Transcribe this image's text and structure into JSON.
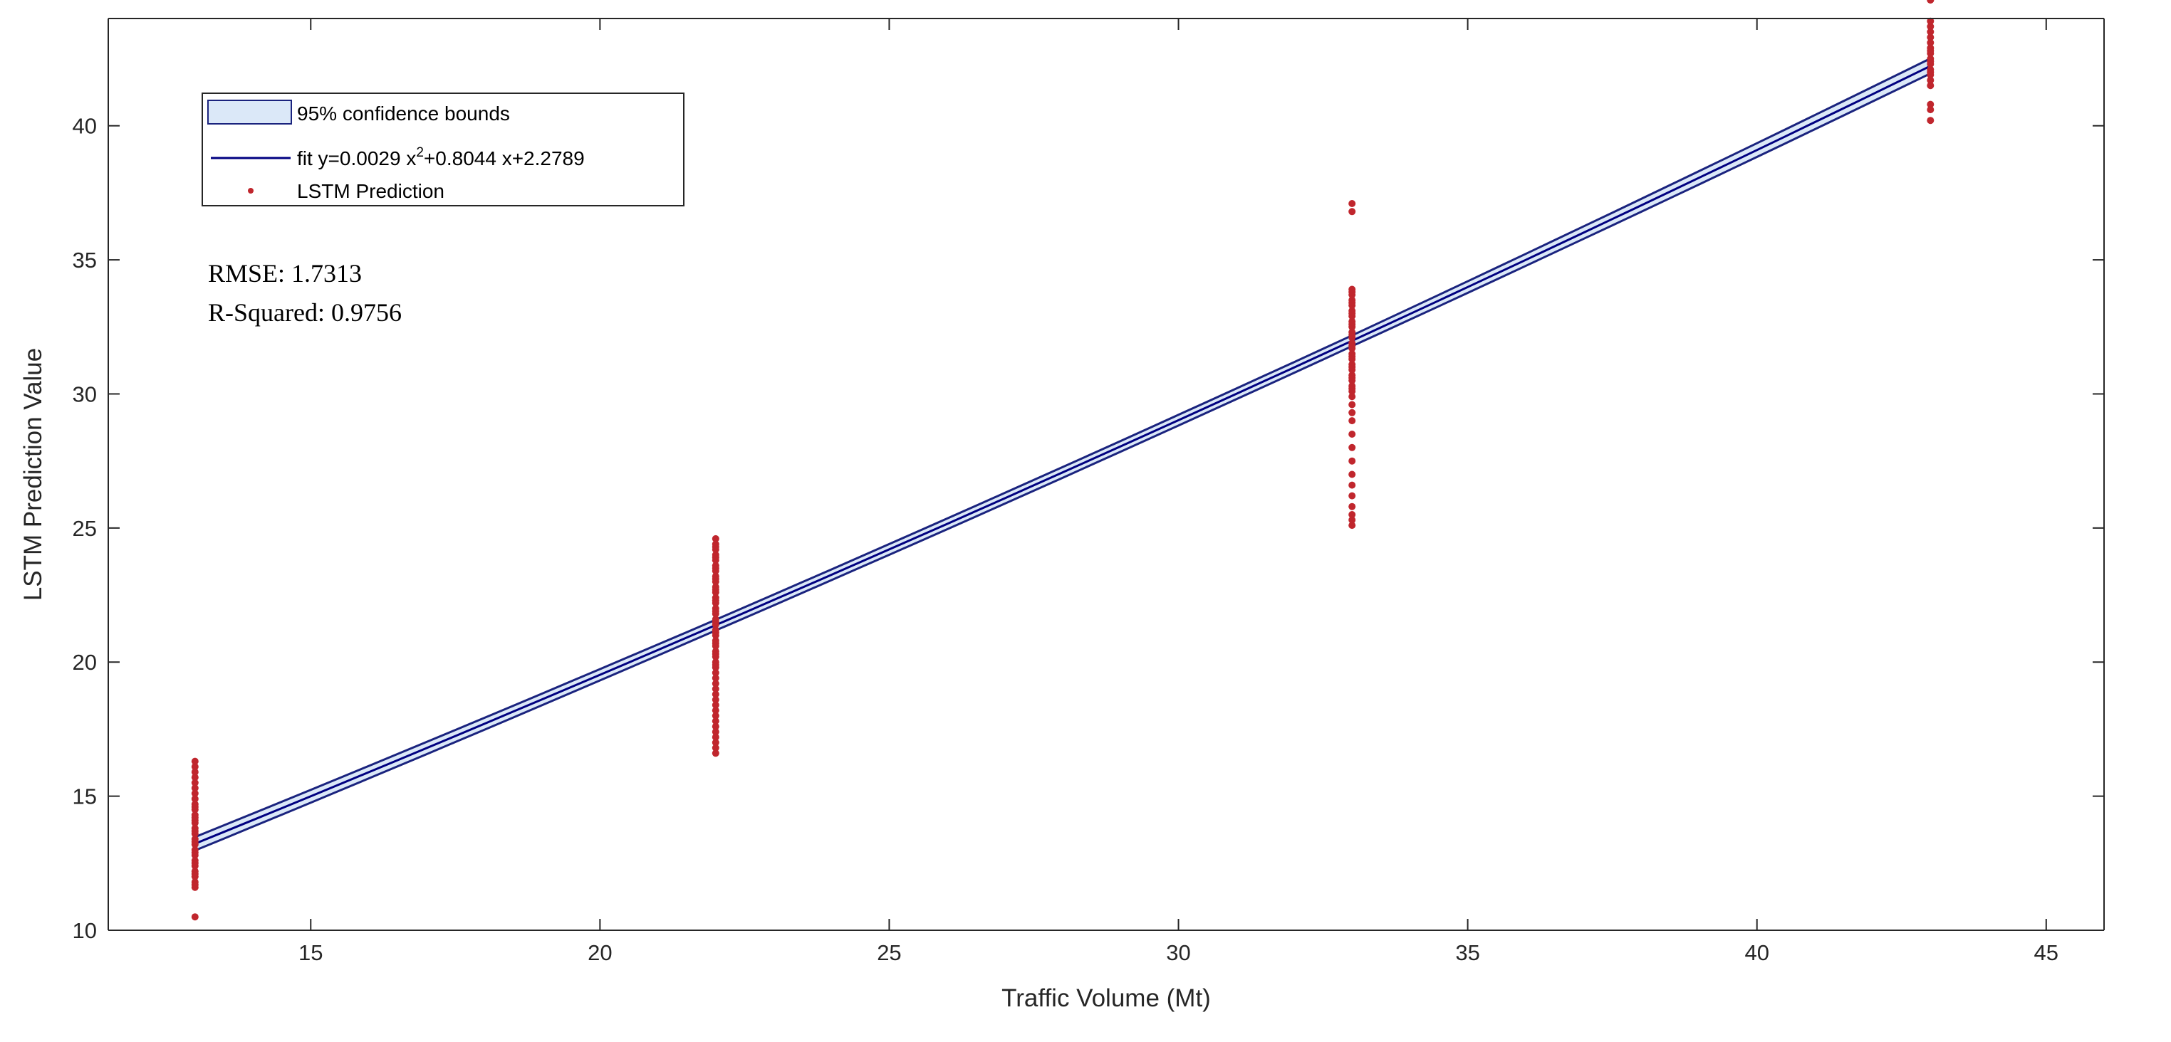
{
  "chart_data": {
    "type": "scatter",
    "title": "",
    "xlabel": "Traffic Volume (Mt)",
    "ylabel": "LSTM Prediction Value",
    "xlim": [
      11.5,
      46
    ],
    "ylim": [
      10,
      44
    ],
    "xticks": [
      15,
      20,
      25,
      30,
      35,
      40,
      45
    ],
    "yticks": [
      10,
      15,
      20,
      25,
      30,
      35,
      40
    ],
    "grid": false,
    "legend_position": "top-left",
    "legend": [
      {
        "key": "bounds",
        "label": "95% confidence bounds"
      },
      {
        "key": "fit",
        "label_prefix": "fit y=0.0029 x",
        "label_sup": "2",
        "label_suffix": "+0.8044 x+2.2789"
      },
      {
        "key": "points",
        "label": "LSTM Prediction"
      }
    ],
    "annotations": {
      "rmse": "RMSE: 1.7313",
      "r_squared": "R-Squared: 0.9756"
    },
    "fit": {
      "coefficients": {
        "a": 0.0029,
        "b": 0.8044,
        "c": 2.2789
      },
      "x_range": [
        13,
        43
      ],
      "confidence_half_width_at_x": [
        [
          13,
          0.25
        ],
        [
          22,
          0.2
        ],
        [
          33,
          0.2
        ],
        [
          43,
          0.28
        ]
      ]
    },
    "series": [
      {
        "name": "LSTM Prediction",
        "points_x": [
          13,
          13,
          13,
          13,
          13,
          13,
          13,
          13,
          13,
          13,
          13,
          13,
          13,
          13,
          13,
          13,
          13,
          13,
          13,
          13,
          13,
          13,
          13,
          13,
          13,
          13,
          13,
          13,
          13,
          13,
          13,
          13,
          13,
          13,
          22,
          22,
          22,
          22,
          22,
          22,
          22,
          22,
          22,
          22,
          22,
          22,
          22,
          22,
          22,
          22,
          22,
          22,
          22,
          22,
          22,
          22,
          22,
          22,
          22,
          22,
          22,
          22,
          22,
          22,
          22,
          22,
          22,
          22,
          22,
          22,
          22,
          22,
          22,
          22,
          22,
          22,
          22,
          22,
          22,
          22,
          22,
          22,
          22,
          22,
          22,
          22,
          22,
          33,
          33,
          33,
          33,
          33,
          33,
          33,
          33,
          33,
          33,
          33,
          33,
          33,
          33,
          33,
          33,
          33,
          33,
          33,
          33,
          33,
          33,
          33,
          33,
          33,
          33,
          33,
          33,
          33,
          33,
          33,
          33,
          33,
          33,
          33,
          33,
          33,
          33,
          33,
          33,
          33,
          33,
          33,
          33,
          33,
          33,
          43,
          43,
          43,
          43,
          43,
          43,
          43,
          43,
          43,
          43,
          43,
          43,
          43,
          43,
          43,
          43,
          43,
          43,
          43,
          43,
          43
        ],
        "points_y": [
          10.5,
          11.6,
          11.8,
          12.0,
          12.2,
          12.4,
          12.6,
          12.8,
          13.0,
          13.2,
          13.4,
          13.6,
          13.8,
          14.0,
          14.1,
          14.3,
          14.5,
          14.7,
          14.9,
          15.1,
          15.3,
          15.5,
          15.7,
          15.9,
          16.1,
          16.3,
          11.7,
          12.1,
          12.5,
          12.9,
          13.3,
          13.7,
          14.2,
          14.6,
          16.6,
          16.8,
          17.0,
          17.2,
          17.4,
          17.6,
          17.8,
          18.0,
          18.2,
          18.4,
          18.6,
          18.8,
          19.0,
          19.2,
          19.4,
          19.6,
          19.8,
          20.0,
          20.2,
          20.4,
          20.6,
          20.8,
          21.0,
          21.2,
          21.4,
          21.6,
          21.8,
          22.0,
          22.2,
          22.4,
          22.6,
          22.8,
          23.0,
          23.2,
          23.4,
          23.6,
          23.8,
          24.0,
          24.2,
          24.4,
          24.6,
          19.9,
          20.3,
          20.7,
          21.1,
          21.5,
          21.9,
          22.3,
          22.7,
          23.1,
          23.5,
          23.9,
          24.3,
          25.1,
          25.3,
          25.5,
          25.8,
          26.2,
          26.6,
          27.0,
          27.5,
          28.0,
          28.5,
          29.0,
          29.3,
          29.6,
          29.9,
          30.1,
          30.3,
          30.5,
          30.7,
          30.9,
          31.1,
          31.3,
          31.5,
          31.7,
          31.9,
          32.1,
          32.3,
          32.5,
          32.7,
          32.9,
          33.1,
          33.3,
          33.5,
          33.7,
          33.9,
          30.2,
          30.6,
          31.0,
          31.4,
          31.8,
          32.2,
          32.6,
          33.0,
          33.4,
          33.8,
          36.8,
          37.1,
          40.2,
          40.6,
          40.8,
          41.5,
          41.7,
          41.9,
          42.1,
          42.3,
          42.5,
          42.7,
          42.9,
          43.1,
          43.3,
          43.5,
          43.7,
          43.9,
          42.0,
          42.4,
          42.8
        ]
      }
    ],
    "colors": {
      "fit_line": "#000080",
      "bounds_fill": "#dbe8f8",
      "bounds_edge": "#1a237e",
      "points": "#c0262d",
      "axis": "#262626"
    }
  }
}
